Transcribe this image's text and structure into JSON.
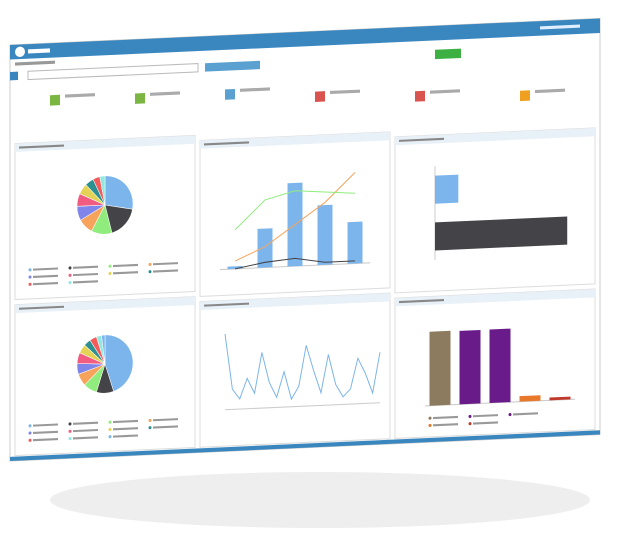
{
  "charts": [
    {
      "type": "pie",
      "values": [
        28,
        18,
        12,
        9,
        8,
        7,
        6,
        5,
        4,
        3
      ],
      "colors": [
        "#7cb5ec",
        "#434348",
        "#90ed7d",
        "#f7a35c",
        "#8085e9",
        "#f15c80",
        "#e4d354",
        "#2b908f",
        "#f45b5b",
        "#91e8e1"
      ]
    },
    {
      "type": "combo",
      "ylim": [
        0,
        4
      ],
      "series": [
        {
          "kind": "bar",
          "color": "#7cb5ec",
          "values": [
            0.1,
            1.5,
            3.2,
            2.3,
            1.6
          ]
        },
        {
          "kind": "line",
          "color": "#f7a35c",
          "values": [
            0.3,
            0.8,
            1.6,
            2.4,
            3.5
          ]
        },
        {
          "kind": "line",
          "color": "#434348",
          "values": [
            0,
            0.2,
            0.3,
            0.1,
            0.1
          ]
        },
        {
          "kind": "line",
          "color": "#90ed7d",
          "values": [
            1.5,
            2.6,
            2.9,
            2.8,
            2.7
          ]
        }
      ]
    },
    {
      "type": "hbar",
      "values": [
        3,
        17
      ],
      "colors": [
        "#7cb5ec",
        "#434348"
      ],
      "xlim": [
        0,
        18
      ]
    },
    {
      "type": "pie",
      "values": [
        45,
        10,
        8,
        7,
        6,
        6,
        5,
        4,
        4,
        3,
        2
      ],
      "colors": [
        "#7cb5ec",
        "#434348",
        "#90ed7d",
        "#f7a35c",
        "#8085e9",
        "#f15c80",
        "#e4d354",
        "#2b908f",
        "#f45b5b",
        "#91e8e1",
        "#7cb5ec"
      ]
    },
    {
      "type": "line",
      "color": "#7cb5ec",
      "ylim": [
        0,
        35
      ],
      "values": [
        30,
        8,
        4,
        12,
        6,
        22,
        10,
        4,
        14,
        3,
        8,
        24,
        14,
        5,
        20,
        8,
        3,
        6,
        18,
        12,
        4,
        20
      ]
    },
    {
      "type": "bar",
      "values": [
        134,
        133,
        133,
        10,
        5
      ],
      "colors": [
        "#8c7b5e",
        "#6a1b8a",
        "#6a1b8a",
        "#e8782a",
        "#c0392b"
      ],
      "ylim": [
        0,
        160
      ]
    }
  ]
}
